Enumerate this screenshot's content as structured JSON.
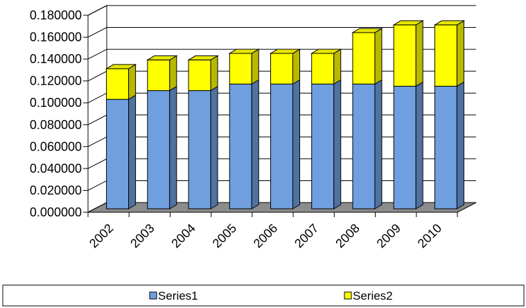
{
  "chart_data": {
    "type": "bar",
    "stacked": true,
    "three_d": true,
    "title": "",
    "xlabel": "",
    "ylabel": "",
    "categories": [
      "2002",
      "2003",
      "2004",
      "2005",
      "2006",
      "2007",
      "2008",
      "2009",
      "2010"
    ],
    "series": [
      {
        "name": "Series1",
        "color": "#6f9fdf",
        "values": [
          0.1,
          0.108,
          0.108,
          0.114,
          0.114,
          0.114,
          0.114,
          0.112,
          0.112
        ]
      },
      {
        "name": "Series2",
        "color": "#ffff00",
        "values": [
          0.028,
          0.028,
          0.028,
          0.028,
          0.028,
          0.028,
          0.047,
          0.056,
          0.056
        ]
      }
    ],
    "ylim": [
      0,
      0.18
    ],
    "yticks": [
      "0.000000",
      "0.020000",
      "0.040000",
      "0.060000",
      "0.080000",
      "0.100000",
      "0.120000",
      "0.140000",
      "0.160000",
      "0.180000"
    ],
    "grid": true,
    "legend_position": "bottom"
  }
}
